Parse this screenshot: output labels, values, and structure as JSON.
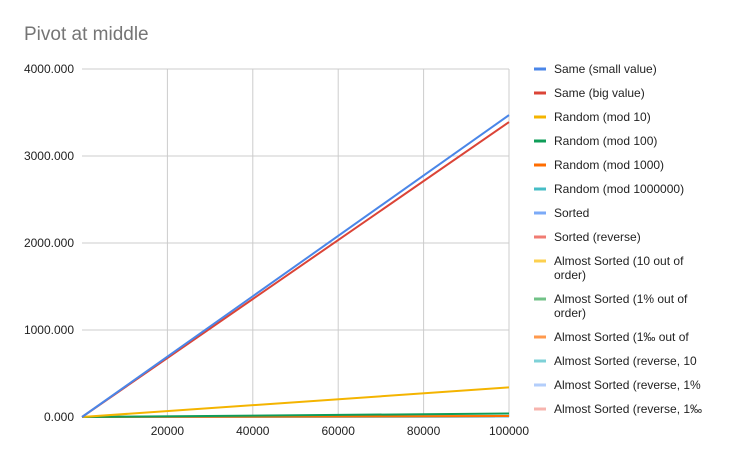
{
  "chart_data": {
    "type": "line",
    "title": "Pivot at middle",
    "xlabel": "",
    "ylabel": "",
    "xlim": [
      0,
      100000
    ],
    "ylim": [
      0,
      4000
    ],
    "x_ticks": [
      20000,
      40000,
      60000,
      80000,
      100000
    ],
    "x_tick_labels": [
      "20000",
      "40000",
      "60000",
      "80000",
      "100000"
    ],
    "y_ticks": [
      0,
      1000,
      2000,
      3000,
      4000
    ],
    "y_tick_labels": [
      "0.000",
      "1000.000",
      "2000.000",
      "3000.000",
      "4000.000"
    ],
    "grid": true,
    "legend_position": "right",
    "series": [
      {
        "name": "Same (small value)",
        "color": "#4a86e8",
        "x": [
          0,
          100000
        ],
        "values": [
          0,
          3470
        ]
      },
      {
        "name": "Same (big value)",
        "color": "#db4437",
        "x": [
          0,
          100000
        ],
        "values": [
          0,
          3390
        ]
      },
      {
        "name": "Random (mod 10)",
        "color": "#f4b400",
        "x": [
          0,
          100000
        ],
        "values": [
          0,
          340
        ]
      },
      {
        "name": "Random (mod 100)",
        "color": "#0f9d58",
        "x": [
          0,
          100000
        ],
        "values": [
          0,
          40
        ]
      },
      {
        "name": "Random (mod 1000)",
        "color": "#ff6d00",
        "x": [
          0,
          100000
        ],
        "values": [
          0,
          12
        ]
      },
      {
        "name": "Random (mod 1000000)",
        "color": "#46bdc6",
        "x": [
          0,
          100000
        ],
        "values": [
          0,
          8
        ]
      },
      {
        "name": "Sorted",
        "color": "#7baaf7",
        "x": [
          0,
          100000
        ],
        "values": [
          0,
          6
        ]
      },
      {
        "name": "Sorted (reverse)",
        "color": "#f07b72",
        "x": [
          0,
          100000
        ],
        "values": [
          0,
          6
        ]
      },
      {
        "name": "Almost Sorted (10 out of order)",
        "color": "#fcd04f",
        "x": [
          0,
          100000
        ],
        "values": [
          0,
          6
        ]
      },
      {
        "name": "Almost Sorted (1% out of order)",
        "color": "#71c287",
        "x": [
          0,
          100000
        ],
        "values": [
          0,
          6
        ]
      },
      {
        "name": "Almost Sorted (1‰ out of",
        "color": "#ff994d",
        "x": [
          0,
          100000
        ],
        "values": [
          0,
          6
        ]
      },
      {
        "name": "Almost Sorted (reverse, 10",
        "color": "#7ed1d7",
        "x": [
          0,
          100000
        ],
        "values": [
          0,
          6
        ]
      },
      {
        "name": "Almost Sorted (reverse, 1%",
        "color": "#b3cefb",
        "x": [
          0,
          100000
        ],
        "values": [
          0,
          6
        ]
      },
      {
        "name": "Almost Sorted (reverse, 1‰",
        "color": "#f7b4ae",
        "x": [
          0,
          100000
        ],
        "values": [
          0,
          6
        ]
      }
    ],
    "legend_lines": [
      [
        "Same (small value)"
      ],
      [
        "Same (big value)"
      ],
      [
        "Random (mod 10)"
      ],
      [
        "Random (mod 100)"
      ],
      [
        "Random (mod 1000)"
      ],
      [
        "Random (mod 1000000)"
      ],
      [
        "Sorted"
      ],
      [
        "Sorted (reverse)"
      ],
      [
        "Almost Sorted (10 out of",
        "order)"
      ],
      [
        "Almost Sorted (1% out of",
        "order)"
      ],
      [
        "Almost Sorted (1‰ out of"
      ],
      [
        "Almost Sorted (reverse, 10"
      ],
      [
        "Almost Sorted (reverse, 1%"
      ],
      [
        "Almost Sorted (reverse, 1‰"
      ]
    ]
  }
}
